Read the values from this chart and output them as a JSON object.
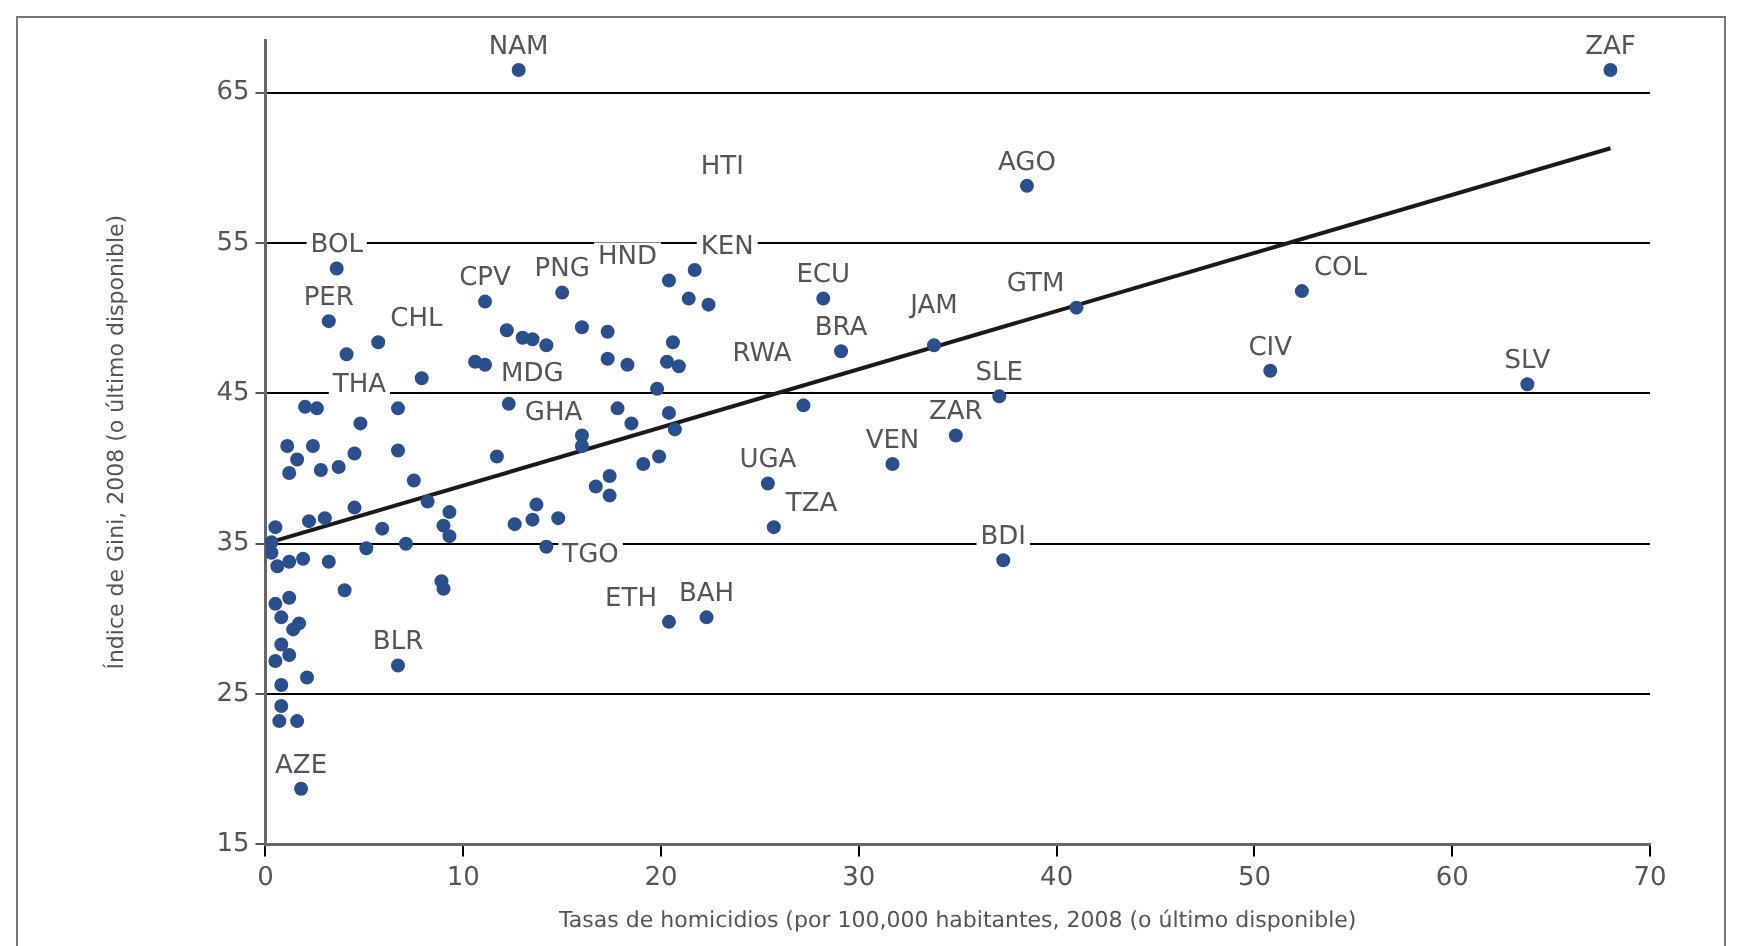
{
  "chart_data": {
    "type": "scatter",
    "xlabel": "Tasas de homicidios (por 100,000 habitantes, 2008 (o último disponible)",
    "ylabel": "Índice de Gini, 2008 (o último disponible)",
    "xlim": [
      0,
      70
    ],
    "ylim": [
      15,
      68.5
    ],
    "xticks": [
      0,
      10,
      20,
      30,
      40,
      50,
      60,
      70
    ],
    "yticks": [
      15,
      25,
      35,
      45,
      55,
      65
    ],
    "grid": "y",
    "legend": false,
    "marker": "circle",
    "series": [
      {
        "type": "scatter",
        "color": "#2b4f8c",
        "x": [
          12.8,
          68.0,
          38.5,
          28.2,
          29.1,
          33.8,
          41.0,
          52.4,
          50.8,
          63.8,
          27.2,
          37.1,
          34.9,
          31.7,
          25.4,
          25.7,
          37.3,
          20.4,
          22.3,
          6.7,
          1.8,
          3.6,
          3.2,
          4.1,
          5.7,
          7.9,
          11.1,
          15.0,
          16.0,
          17.3,
          20.4,
          21.7,
          22.4,
          21.4,
          20.6,
          20.9,
          11.1,
          10.6,
          12.3,
          6.7,
          2.0,
          2.6,
          4.8,
          1.1,
          1.6,
          1.2,
          2.4,
          2.8,
          3.7,
          4.5,
          6.7,
          7.5,
          8.2,
          9.3,
          9.0,
          9.3,
          5.9,
          7.1,
          5.1,
          4.0,
          8.9,
          9.0,
          11.7,
          12.6,
          13.5,
          14.2,
          13.7,
          14.8,
          16.0,
          16.0,
          16.7,
          17.4,
          17.4,
          19.1,
          19.9,
          18.5,
          20.4,
          17.8,
          20.7,
          0.5,
          0.3,
          0.6,
          1.2,
          1.9,
          3.2,
          0.5,
          1.2,
          0.8,
          1.4,
          1.7,
          0.8,
          0.5,
          1.2,
          2.1,
          0.8,
          0.8,
          0.7,
          1.6,
          2.2,
          3.0,
          4.5,
          0.3,
          12.2,
          13.0,
          13.5,
          14.2,
          17.3,
          18.3,
          19.8,
          20.3
        ],
        "values": [
          66.5,
          66.5,
          58.8,
          51.3,
          47.8,
          48.2,
          50.7,
          51.8,
          46.5,
          45.6,
          44.2,
          44.8,
          42.2,
          40.3,
          39.0,
          36.1,
          33.9,
          29.8,
          30.1,
          26.9,
          18.7,
          53.3,
          49.8,
          47.6,
          48.4,
          46.0,
          51.1,
          51.7,
          49.4,
          49.1,
          52.5,
          53.2,
          50.9,
          51.3,
          48.4,
          46.8,
          46.9,
          47.1,
          44.3,
          44.0,
          44.1,
          44.0,
          43.0,
          41.5,
          40.6,
          39.7,
          41.5,
          39.9,
          40.1,
          41.0,
          41.2,
          39.2,
          37.8,
          37.1,
          36.2,
          35.5,
          36.0,
          35.0,
          34.7,
          31.9,
          32.5,
          32.0,
          40.8,
          36.3,
          36.6,
          34.8,
          37.6,
          36.7,
          42.2,
          41.5,
          38.8,
          39.5,
          38.2,
          40.3,
          40.8,
          43.0,
          43.7,
          44.0,
          42.6,
          36.1,
          34.4,
          33.5,
          33.8,
          34.0,
          33.8,
          31.0,
          31.4,
          30.1,
          29.3,
          29.7,
          28.3,
          27.2,
          27.6,
          26.1,
          25.6,
          24.2,
          23.2,
          23.2,
          36.5,
          36.7,
          37.4,
          35.1,
          49.2,
          48.7,
          48.6,
          48.2,
          47.3,
          46.9,
          45.3,
          47.1
        ]
      },
      {
        "type": "line",
        "color": "#1a1a1a",
        "marker": "none",
        "line_style": "solid",
        "x": [
          0,
          68
        ],
        "values": [
          35.0,
          61.3
        ]
      }
    ],
    "annotations": [
      {
        "text": "NAM",
        "x": 12.8,
        "y": 66.5
      },
      {
        "text": "ZAF",
        "x": 68.0,
        "y": 66.5
      },
      {
        "text": "AGO",
        "x": 38.5,
        "y": 58.8
      },
      "HTI",
      {
        "text": "ECU",
        "x": 28.2,
        "y": 51.3
      },
      {
        "text": "BRA",
        "x": 29.1,
        "y": 47.8
      },
      {
        "text": "JAM",
        "x": 33.8,
        "y": 48.2
      },
      {
        "text": "GTM",
        "x": 41.0,
        "y": 50.7
      },
      {
        "text": "COL",
        "x": 52.4,
        "y": 51.8
      },
      {
        "text": "CIV",
        "x": 50.8,
        "y": 46.5
      },
      {
        "text": "SLV",
        "x": 63.8,
        "y": 45.6
      },
      {
        "text": "RWA",
        "x": 27.2,
        "y": 44.2
      },
      {
        "text": "SLE",
        "x": 37.1,
        "y": 44.8
      },
      {
        "text": "ZAR",
        "x": 34.9,
        "y": 42.2
      },
      {
        "text": "VEN",
        "x": 31.7,
        "y": 40.3
      },
      {
        "text": "UGA",
        "x": 25.4,
        "y": 39.0
      },
      {
        "text": "TZA",
        "x": 25.7,
        "y": 36.1
      },
      {
        "text": "BDI",
        "x": 37.3,
        "y": 33.9
      },
      {
        "text": "ETH",
        "x": 20.4,
        "y": 29.8
      },
      {
        "text": "BAH",
        "x": 22.3,
        "y": 30.1
      },
      {
        "text": "BLR",
        "x": 6.7,
        "y": 26.9
      },
      {
        "text": "AZE",
        "x": 1.8,
        "y": 18.7
      },
      {
        "text": "BOL",
        "x": 3.6,
        "y": 53.3
      },
      {
        "text": "PER",
        "x": 3.2,
        "y": 49.8
      },
      {
        "text": "CHL",
        "x": 5.7,
        "y": 48.4
      },
      {
        "text": "CPV",
        "x": 11.1,
        "y": 51.1
      },
      {
        "text": "PNG",
        "x": 15.0,
        "y": 51.7
      },
      {
        "text": "HND",
        "x": 20.4,
        "y": 52.5
      },
      {
        "text": "KEN",
        "x": 21.4,
        "y": 51.3
      },
      {
        "text": "MDG",
        "x": 11.1,
        "y": 46.9
      },
      {
        "text": "GHA",
        "x": 12.3,
        "y": 44.3
      },
      {
        "text": "THA",
        "x": 6.7,
        "y": 44.0
      },
      {
        "text": "TGO",
        "x": 14.2,
        "y": 34.8
      }
    ]
  }
}
